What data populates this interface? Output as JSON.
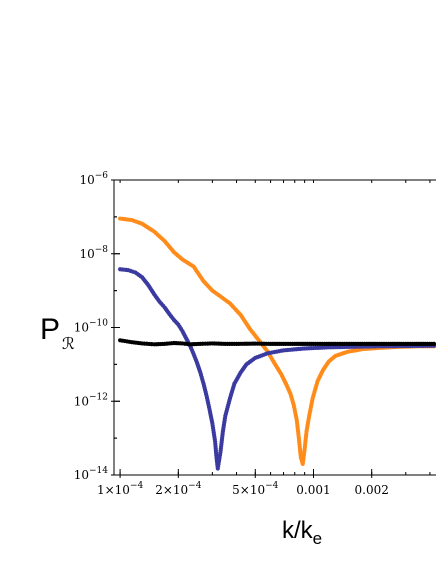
{
  "chart_data": {
    "type": "scatter",
    "title": "",
    "xlabel": {
      "main": "k/k",
      "sub": "e"
    },
    "ylabel": {
      "main": "P",
      "sub": "ℛ"
    },
    "x_scale": "log",
    "y_scale": "log",
    "xlim": [
      9.3e-05,
      0.0043
    ],
    "ylim": [
      1e-14,
      1e-06
    ],
    "grid": false,
    "legend": "none",
    "x_ticks": [
      {
        "value": 0.0001,
        "mantissa": "1×10",
        "exp": "−4",
        "label": ""
      },
      {
        "value": 0.0002,
        "mantissa": "2×10",
        "exp": "−4",
        "label": ""
      },
      {
        "value": 0.0005,
        "mantissa": "5×10",
        "exp": "−4",
        "label": ""
      },
      {
        "value": 0.001,
        "mantissa": "",
        "exp": "",
        "label": "0.001"
      },
      {
        "value": 0.002,
        "mantissa": "",
        "exp": "",
        "label": "0.002"
      }
    ],
    "y_ticks": [
      {
        "value": 1e-06,
        "base": "10",
        "exp": "−6"
      },
      {
        "value": 1e-08,
        "base": "10",
        "exp": "−8"
      },
      {
        "value": 1e-10,
        "base": "10",
        "exp": "−10"
      },
      {
        "value": 1e-12,
        "base": "10",
        "exp": "−12"
      },
      {
        "value": 1e-14,
        "base": "10",
        "exp": "−14"
      }
    ],
    "series": [
      {
        "color": "#ff8c1a",
        "points": [
          [
            0.0001,
            9e-08
          ],
          [
            0.000115,
            8.2e-08
          ],
          [
            0.00013,
            6.5e-08
          ],
          [
            0.00015,
            4e-08
          ],
          [
            0.00017,
            2.2e-08
          ],
          [
            0.00019,
            1.1e-08
          ],
          [
            0.00021,
            7e-09
          ],
          [
            0.00024,
            4.5e-09
          ],
          [
            0.00027,
            1.8e-09
          ],
          [
            0.0003,
            1e-09
          ],
          [
            0.00033,
            7e-10
          ],
          [
            0.00037,
            4.5e-10
          ],
          [
            0.00042,
            2.2e-10
          ],
          [
            0.00047,
            9e-11
          ],
          [
            0.00052,
            4.6e-11
          ],
          [
            0.00058,
            2.2e-11
          ],
          [
            0.00063,
            1.05e-11
          ],
          [
            0.00068,
            5.5e-12
          ],
          [
            0.00072,
            3e-12
          ],
          [
            0.00076,
            1.6e-12
          ],
          [
            0.00079,
            8e-13
          ],
          [
            0.00082,
            3e-13
          ],
          [
            0.00084,
            1e-13
          ],
          [
            0.00086,
            3e-14
          ],
          [
            0.00088,
            2e-14
          ],
          [
            0.0009,
            5e-14
          ],
          [
            0.00092,
            1.5e-13
          ],
          [
            0.00095,
            4e-13
          ],
          [
            0.00099,
            1.2e-12
          ],
          [
            0.00105,
            3.5e-12
          ],
          [
            0.00112,
            7e-12
          ],
          [
            0.0012,
            1.2e-11
          ],
          [
            0.0013,
            1.7e-11
          ],
          [
            0.0015,
            2.2e-11
          ],
          [
            0.0018,
            2.6e-11
          ],
          [
            0.0022,
            2.8e-11
          ],
          [
            0.0028,
            3e-11
          ],
          [
            0.0035,
            3.1e-11
          ],
          [
            0.0042,
            3.1e-11
          ]
        ]
      },
      {
        "color": "#3a3aa0",
        "points": [
          [
            0.0001,
            3.8e-09
          ],
          [
            0.00011,
            3.6e-09
          ],
          [
            0.00012,
            3.1e-09
          ],
          [
            0.00013,
            2.3e-09
          ],
          [
            0.00014,
            1.4e-09
          ],
          [
            0.00015,
            8e-10
          ],
          [
            0.00016,
            5e-10
          ],
          [
            0.00017,
            3.5e-10
          ],
          [
            0.00018,
            2.3e-10
          ],
          [
            0.00019,
            1.6e-10
          ],
          [
            0.0002,
            1.2e-10
          ],
          [
            0.00021,
            8e-11
          ],
          [
            0.00022,
            5e-11
          ],
          [
            0.00023,
            3.2e-11
          ],
          [
            0.00024,
            1.9e-11
          ],
          [
            0.00025,
            1.1e-11
          ],
          [
            0.00026,
            6e-12
          ],
          [
            0.00027,
            3e-12
          ],
          [
            0.00028,
            1.4e-12
          ],
          [
            0.00029,
            6e-13
          ],
          [
            0.0003,
            2.5e-13
          ],
          [
            0.00031,
            8e-14
          ],
          [
            0.000315,
            3e-14
          ],
          [
            0.00032,
            1.5e-14
          ],
          [
            0.00033,
            4e-14
          ],
          [
            0.00034,
            1.5e-13
          ],
          [
            0.00035,
            4e-13
          ],
          [
            0.00037,
            1.2e-12
          ],
          [
            0.00039,
            3e-12
          ],
          [
            0.00042,
            6e-12
          ],
          [
            0.00045,
            1e-11
          ],
          [
            0.0005,
            1.5e-11
          ],
          [
            0.00058,
            2e-11
          ],
          [
            0.0007,
            2.4e-11
          ],
          [
            0.0009,
            2.7e-11
          ],
          [
            0.0012,
            2.9e-11
          ],
          [
            0.0016,
            3e-11
          ],
          [
            0.0022,
            3.1e-11
          ],
          [
            0.003,
            3.15e-11
          ],
          [
            0.0042,
            3.2e-11
          ]
        ]
      },
      {
        "color": "#000000",
        "points": [
          [
            0.0001,
            4.5e-11
          ],
          [
            0.000115,
            4e-11
          ],
          [
            0.00013,
            3.7e-11
          ],
          [
            0.00015,
            3.5e-11
          ],
          [
            0.00017,
            3.6e-11
          ],
          [
            0.00019,
            3.8e-11
          ],
          [
            0.00021,
            3.7e-11
          ],
          [
            0.00023,
            3.5e-11
          ],
          [
            0.00026,
            3.6e-11
          ],
          [
            0.0003,
            3.7e-11
          ],
          [
            0.00035,
            3.6e-11
          ],
          [
            0.0004,
            3.6e-11
          ],
          [
            0.0005,
            3.65e-11
          ],
          [
            0.0006,
            3.6e-11
          ],
          [
            0.0008,
            3.6e-11
          ],
          [
            0.001,
            3.6e-11
          ],
          [
            0.0013,
            3.6e-11
          ],
          [
            0.0017,
            3.6e-11
          ],
          [
            0.0022,
            3.6e-11
          ],
          [
            0.003,
            3.6e-11
          ],
          [
            0.0042,
            3.6e-11
          ]
        ]
      }
    ]
  }
}
